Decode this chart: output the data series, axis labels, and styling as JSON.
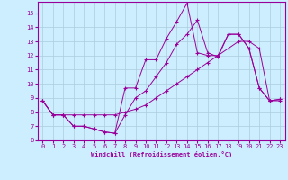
{
  "xlabel": "Windchill (Refroidissement éolien,°C)",
  "bg_color": "#cceeff",
  "line_color": "#990099",
  "grid_color": "#aaccdd",
  "series1_x": [
    0,
    1,
    2,
    3,
    4,
    5,
    6,
    7,
    8,
    9,
    10,
    11,
    12,
    13,
    14,
    15,
    16,
    17,
    18,
    19,
    20,
    21,
    22,
    23
  ],
  "series1_y": [
    8.8,
    7.8,
    7.8,
    7.0,
    7.0,
    6.8,
    6.6,
    6.5,
    9.7,
    9.7,
    11.7,
    11.7,
    13.2,
    14.4,
    15.7,
    12.2,
    12.0,
    12.0,
    13.5,
    13.5,
    12.5,
    9.7,
    8.8,
    8.9
  ],
  "series2_x": [
    0,
    1,
    2,
    3,
    4,
    5,
    6,
    7,
    8,
    9,
    10,
    11,
    12,
    13,
    14,
    15,
    16,
    17,
    18,
    19,
    20,
    21,
    22,
    23
  ],
  "series2_y": [
    8.8,
    7.8,
    7.8,
    7.0,
    7.0,
    6.8,
    6.6,
    6.5,
    7.8,
    9.0,
    9.5,
    10.5,
    11.5,
    12.8,
    13.5,
    14.5,
    12.2,
    11.9,
    13.5,
    13.5,
    12.5,
    9.7,
    8.8,
    8.8
  ],
  "series3_x": [
    0,
    1,
    2,
    3,
    4,
    5,
    6,
    7,
    8,
    9,
    10,
    11,
    12,
    13,
    14,
    15,
    16,
    17,
    18,
    19,
    20,
    21,
    22,
    23
  ],
  "series3_y": [
    8.8,
    7.8,
    7.8,
    7.8,
    7.8,
    7.8,
    7.8,
    7.8,
    8.0,
    8.2,
    8.5,
    9.0,
    9.5,
    10.0,
    10.5,
    11.0,
    11.5,
    12.0,
    12.5,
    13.0,
    13.0,
    12.5,
    8.8,
    8.9
  ],
  "ylim": [
    6,
    15.8
  ],
  "xlim": [
    -0.5,
    23.5
  ],
  "yticks": [
    6,
    7,
    8,
    9,
    10,
    11,
    12,
    13,
    14,
    15
  ],
  "xticks": [
    0,
    1,
    2,
    3,
    4,
    5,
    6,
    7,
    8,
    9,
    10,
    11,
    12,
    13,
    14,
    15,
    16,
    17,
    18,
    19,
    20,
    21,
    22,
    23
  ]
}
